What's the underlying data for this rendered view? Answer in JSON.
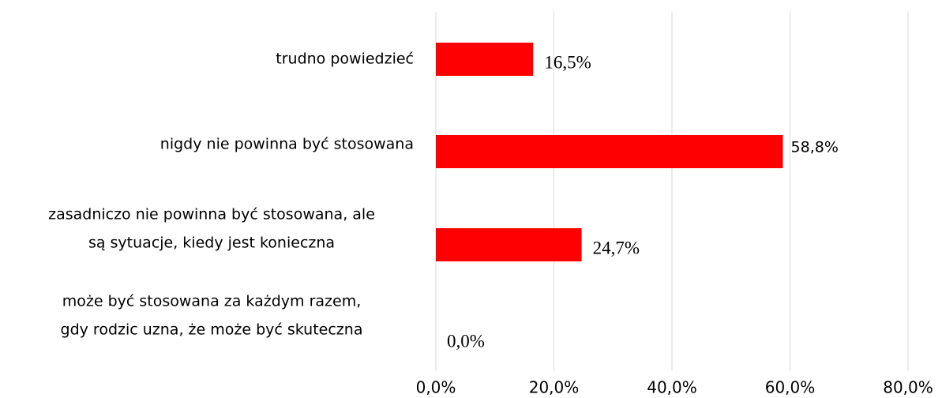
{
  "chart_data": {
    "type": "bar",
    "orientation": "horizontal",
    "categories": [
      [
        "trudno powiedzieć"
      ],
      [
        "nigdy nie powinna być stosowana"
      ],
      [
        "zasadniczo nie powinna być stosowana, ale",
        "są sytuacje, kiedy jest konieczna"
      ],
      [
        "może być stosowana za każdym razem,",
        "gdy rodzic uzna, że może być skuteczna"
      ]
    ],
    "values": [
      16.5,
      58.8,
      24.7,
      0.0
    ],
    "value_labels": [
      "16,5%",
      "58,8%",
      "24,7%",
      "0,0%"
    ],
    "color": "#ff0000",
    "xlim": [
      0,
      80
    ],
    "xticks": [
      {
        "value": 0,
        "label": "0,0%"
      },
      {
        "value": 20,
        "label": "20,0%"
      },
      {
        "value": 40,
        "label": "40,0%"
      },
      {
        "value": 60,
        "label": "60,0%"
      },
      {
        "value": 80,
        "label": "80,0%"
      }
    ],
    "grid": true
  }
}
